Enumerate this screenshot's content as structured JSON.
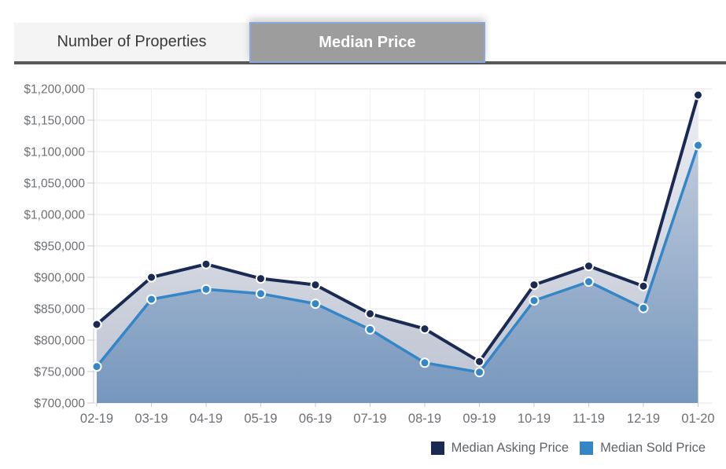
{
  "tabs": [
    {
      "label": "Number of Properties",
      "active": false
    },
    {
      "label": "Median Price",
      "active": true
    }
  ],
  "colors": {
    "asking_line": "#1a2a52",
    "sold_line": "#3486c7",
    "asking_area_top": "#eceef3",
    "asking_area_bottom": "#b7becd",
    "sold_area_top": "#cdd5e2",
    "sold_area_bottom": "#7294bc",
    "tab_active_bg": "#9d9d9d",
    "tab_active_border": "#8aa8da",
    "tab_inactive_bg": "#f4f4f4",
    "tab_underline": "#58595b",
    "axis_text": "#6d7074",
    "grid_line_h": "#e4e4e4",
    "grid_line_v": "#efefef",
    "axis_line": "#c9c9c9",
    "marker_ring": "#ffffff"
  },
  "chart_data": {
    "type": "area",
    "categories": [
      "02-19",
      "03-19",
      "04-19",
      "05-19",
      "06-19",
      "07-19",
      "08-19",
      "09-19",
      "10-19",
      "11-19",
      "12-19",
      "01-20"
    ],
    "series": [
      {
        "name": "Median Asking Price",
        "color": "#1a2a52",
        "values": [
          825000,
          900000,
          921000,
          898000,
          888000,
          842000,
          818000,
          766000,
          888000,
          918000,
          886000,
          1190000
        ]
      },
      {
        "name": "Median Sold Price",
        "color": "#3486c7",
        "values": [
          758000,
          865000,
          881000,
          874000,
          858000,
          817000,
          764000,
          749000,
          863000,
          893000,
          851000,
          1110000
        ]
      }
    ],
    "ylim": [
      700000,
      1200000
    ],
    "y_tick_step": 50000,
    "y_tick_labels": [
      "$700,000",
      "$750,000",
      "$800,000",
      "$850,000",
      "$900,000",
      "$950,000",
      "$1,000,000",
      "$1,050,000",
      "$1,100,000",
      "$1,150,000",
      "$1,200,000"
    ],
    "grid": true,
    "legend_position": "bottom-right"
  }
}
